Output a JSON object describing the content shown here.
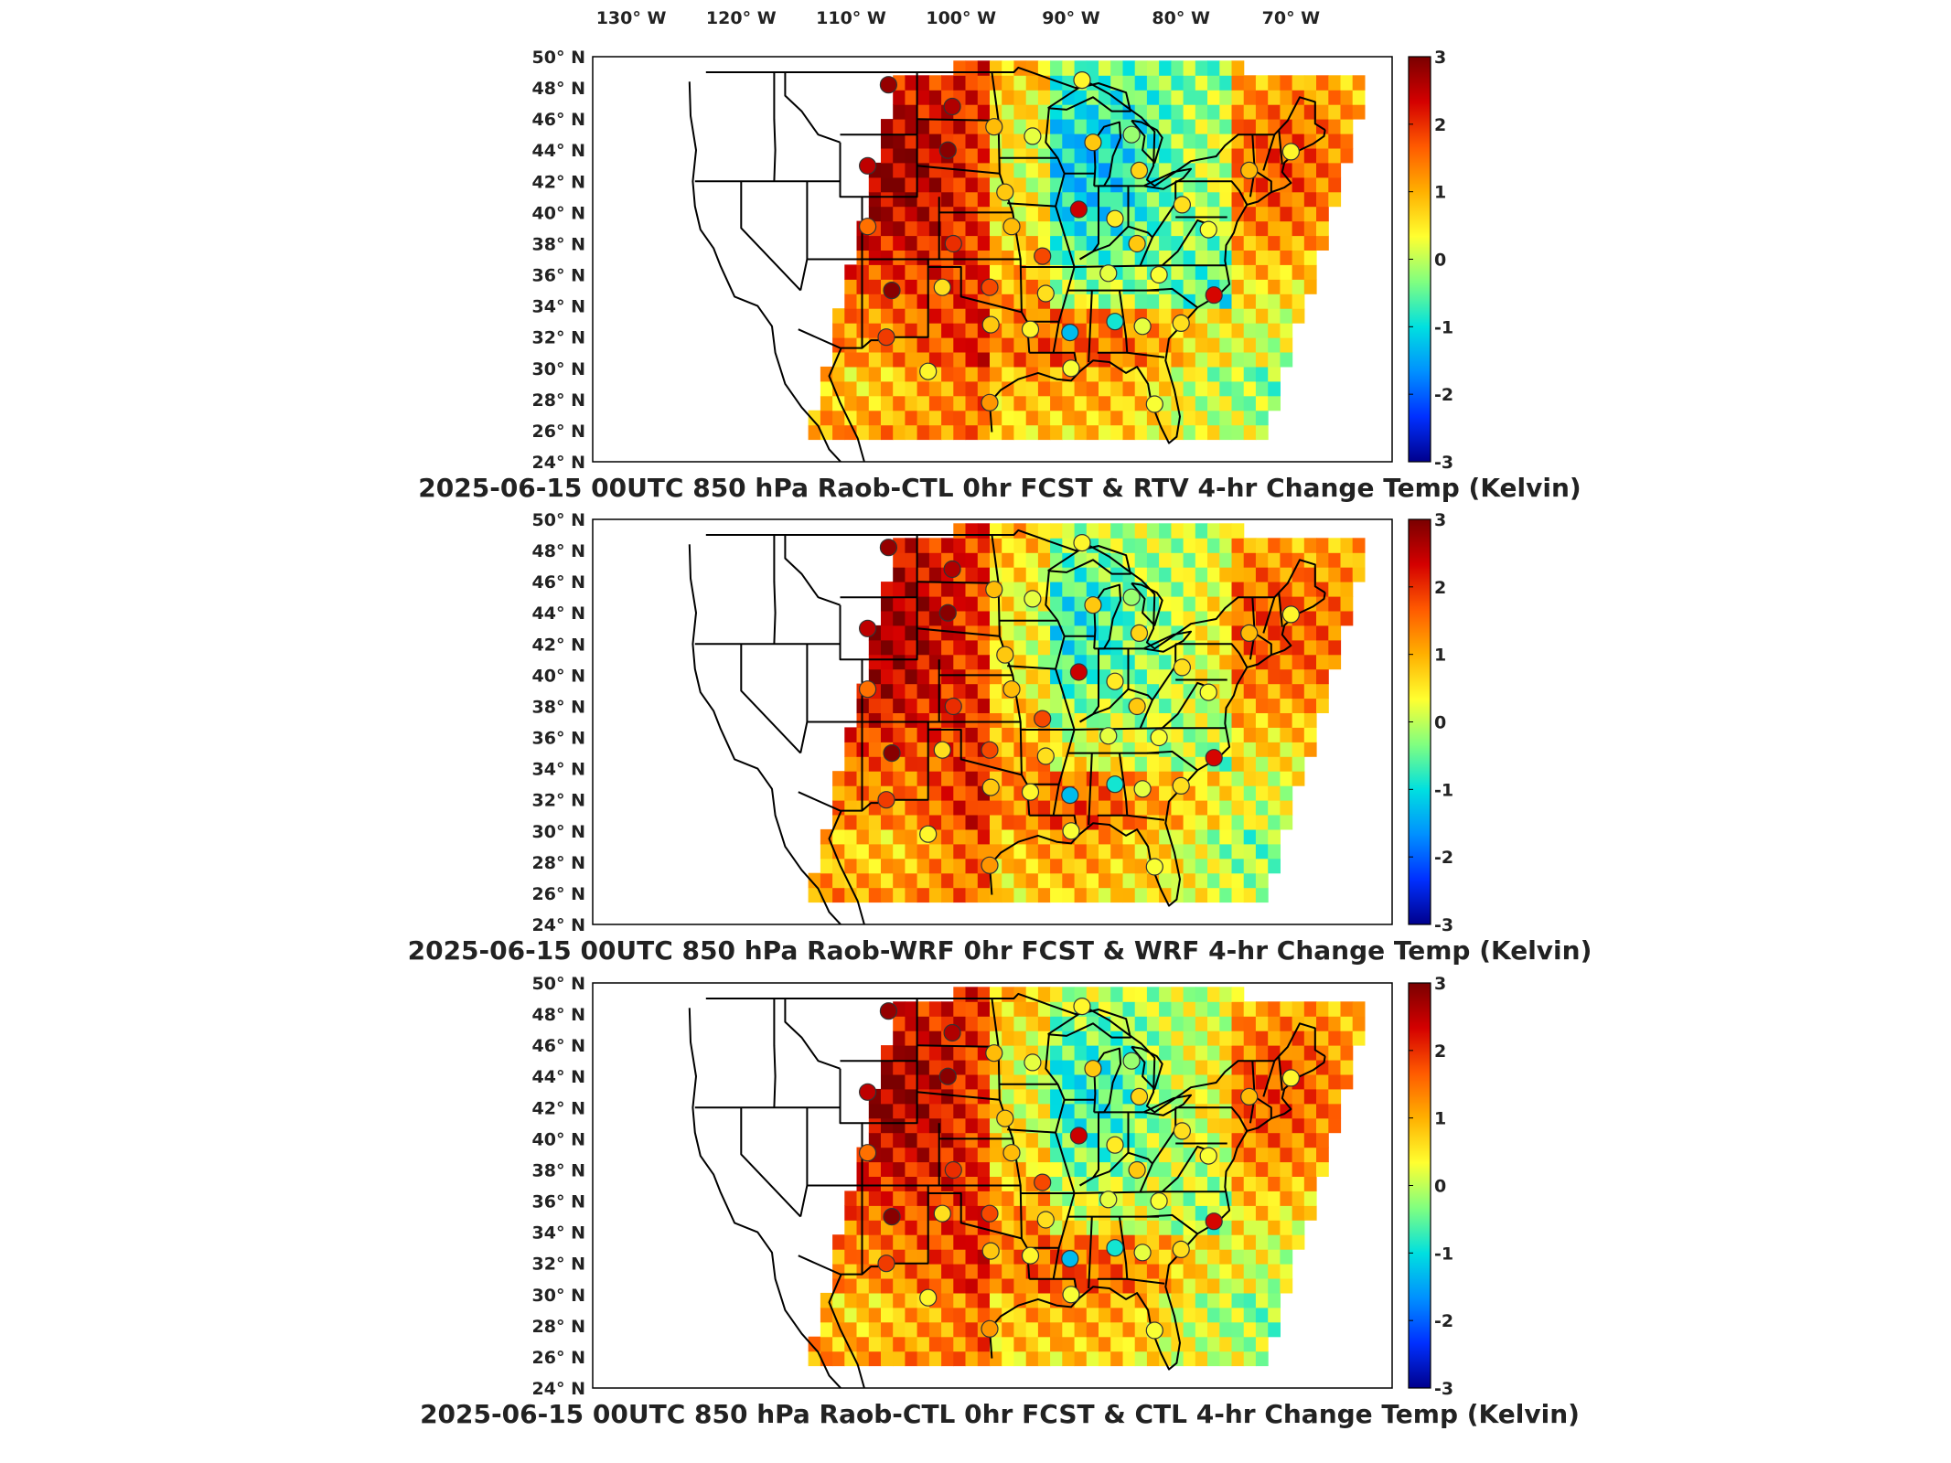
{
  "lon_labels": [
    "130",
    "120",
    "110",
    "100",
    "90",
    "80",
    "70"
  ],
  "lon_suffix": "W",
  "lat_labels": [
    "50",
    "48",
    "46",
    "44",
    "42",
    "40",
    "38",
    "36",
    "34",
    "32",
    "30",
    "28",
    "26",
    "24"
  ],
  "lat_suffix": "N",
  "colorbar": {
    "ticks": [
      "3",
      "2",
      "1",
      "0",
      "-1",
      "-2",
      "-3"
    ],
    "colors": [
      "#7a0000",
      "#d40000",
      "#ff5a00",
      "#ffb000",
      "#ffff30",
      "#80ff80",
      "#00e0e0",
      "#0090ff",
      "#0030ff",
      "#00008c"
    ]
  },
  "panels": [
    {
      "title": "2025-06-15 00UTC 850 hPa Raob-CTL 0hr FCST & RTV 4-hr Change Temp (Kelvin)",
      "variant": "rtv"
    },
    {
      "title": "2025-06-15 00UTC 850 hPa Raob-WRF 0hr FCST & WRF 4-hr Change Temp (Kelvin)",
      "variant": "wrf"
    },
    {
      "title": "2025-06-15 00UTC 850 hPa Raob-CTL 0hr FCST & CTL 4-hr Change Temp (Kelvin)",
      "variant": "ctl"
    }
  ],
  "raob_stations": [
    {
      "lon": -106.6,
      "lat": 48.2,
      "value": 2.8
    },
    {
      "lon": -100.8,
      "lat": 46.8,
      "value": 2.6
    },
    {
      "lon": -97.0,
      "lat": 45.5,
      "value": 0.9
    },
    {
      "lon": -93.5,
      "lat": 44.9,
      "value": 0.2
    },
    {
      "lon": -89.0,
      "lat": 48.5,
      "value": 0.4
    },
    {
      "lon": -88.0,
      "lat": 44.5,
      "value": 0.8
    },
    {
      "lon": -84.5,
      "lat": 45.0,
      "value": -0.2
    },
    {
      "lon": -101.2,
      "lat": 44.0,
      "value": 2.9
    },
    {
      "lon": -108.5,
      "lat": 43.0,
      "value": 2.5
    },
    {
      "lon": -108.5,
      "lat": 39.1,
      "value": 1.5
    },
    {
      "lon": -96.0,
      "lat": 41.3,
      "value": 0.8
    },
    {
      "lon": -89.3,
      "lat": 40.2,
      "value": 2.4
    },
    {
      "lon": -83.8,
      "lat": 42.7,
      "value": 0.7
    },
    {
      "lon": -79.9,
      "lat": 40.5,
      "value": 0.6
    },
    {
      "lon": -73.8,
      "lat": 42.7,
      "value": 0.9
    },
    {
      "lon": -70.0,
      "lat": 43.9,
      "value": 0.4
    },
    {
      "lon": -100.7,
      "lat": 38.0,
      "value": 2.0
    },
    {
      "lon": -95.4,
      "lat": 39.1,
      "value": 0.9
    },
    {
      "lon": -92.6,
      "lat": 37.2,
      "value": 1.8
    },
    {
      "lon": -86.0,
      "lat": 39.6,
      "value": 0.5
    },
    {
      "lon": -84.0,
      "lat": 38.0,
      "value": 0.8
    },
    {
      "lon": -77.5,
      "lat": 38.9,
      "value": 0.3
    },
    {
      "lon": -106.3,
      "lat": 35.0,
      "value": 2.9
    },
    {
      "lon": -101.7,
      "lat": 35.2,
      "value": 0.6
    },
    {
      "lon": -97.4,
      "lat": 35.2,
      "value": 1.8
    },
    {
      "lon": -92.3,
      "lat": 34.8,
      "value": 0.6
    },
    {
      "lon": -86.6,
      "lat": 36.1,
      "value": 0.2
    },
    {
      "lon": -82.0,
      "lat": 36.0,
      "value": 0.3
    },
    {
      "lon": -77.0,
      "lat": 34.7,
      "value": 2.3
    },
    {
      "lon": -106.8,
      "lat": 32.0,
      "value": 1.9
    },
    {
      "lon": -97.3,
      "lat": 32.8,
      "value": 0.8
    },
    {
      "lon": -93.7,
      "lat": 32.5,
      "value": 0.4
    },
    {
      "lon": -90.1,
      "lat": 32.3,
      "value": -1.3
    },
    {
      "lon": -86.0,
      "lat": 33.0,
      "value": -0.9
    },
    {
      "lon": -83.5,
      "lat": 32.7,
      "value": 0.2
    },
    {
      "lon": -80.0,
      "lat": 32.9,
      "value": 0.6
    },
    {
      "lon": -103.0,
      "lat": 29.8,
      "value": 0.4
    },
    {
      "lon": -97.4,
      "lat": 27.8,
      "value": 1.2
    },
    {
      "lon": -90.0,
      "lat": 30.0,
      "value": 0.3
    },
    {
      "lon": -82.4,
      "lat": 27.7,
      "value": 0.3
    }
  ]
}
